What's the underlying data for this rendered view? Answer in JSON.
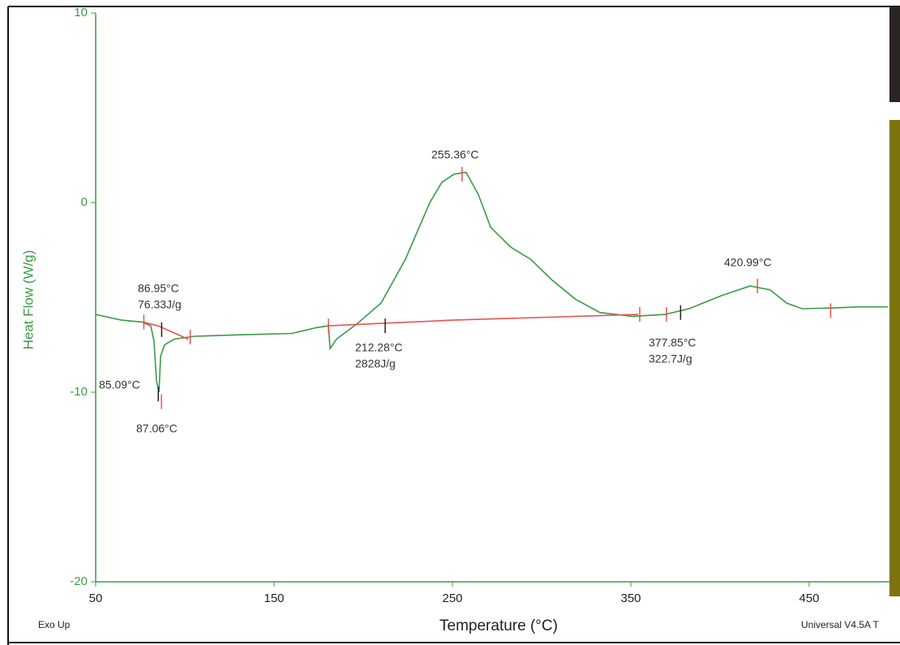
{
  "chart_data": {
    "type": "line",
    "x_label": "Temperature (°C)",
    "y_label": "Heat Flow (W/g)",
    "footer_left": "Exo Up",
    "footer_right": "Universal V4.5A T",
    "xlim": [
      50,
      495
    ],
    "xticks": [
      50,
      150,
      250,
      350,
      450
    ],
    "ylim": [
      -20,
      10
    ],
    "yticks": [
      10,
      0,
      -10,
      -20
    ],
    "series": [
      {
        "color": "#3a9a45",
        "x": [
          50,
          64.5,
          75.9,
          80.9,
          82.7,
          84.1,
          85.5,
          86.4,
          88.6,
          94.1,
          105.5,
          132.7,
          160,
          173.6,
          180.5,
          181.4,
          185,
          196.4,
          210,
          223.6,
          237.3,
          244.1,
          250.9,
          257.7,
          264.5,
          271.4,
          282.7,
          294,
          305.5,
          319,
          332.7,
          350.9,
          369,
          382.7,
          400.9,
          416.8,
          428,
          437.3,
          446,
          464.5,
          478,
          494
        ],
        "values": [
          -5.9,
          -6.2,
          -6.3,
          -6.5,
          -7.3,
          -9.4,
          -10.0,
          -8.1,
          -7.5,
          -7.2,
          -7.05,
          -6.97,
          -6.9,
          -6.6,
          -6.5,
          -7.7,
          -7.2,
          -6.4,
          -5.3,
          -3.0,
          0,
          1.07,
          1.5,
          1.6,
          0.43,
          -1.3,
          -2.35,
          -3.0,
          -4.06,
          -5.1,
          -5.8,
          -6.0,
          -5.9,
          -5.6,
          -4.9,
          -4.4,
          -4.6,
          -5.3,
          -5.6,
          -5.55,
          -5.5,
          -5.5
        ]
      },
      {
        "color": "#e8534f",
        "x": [
          76.4,
          85,
          101.8
        ],
        "values": [
          -6.3,
          -6.5,
          -7.2
        ]
      },
      {
        "color": "#e8534f",
        "x": [
          180.5,
          250,
          354
        ],
        "values": [
          -6.5,
          -6.2,
          -5.9
        ]
      }
    ],
    "markers": [
      {
        "color": "#e8534f",
        "x": [
          77,
          103,
          86.9,
          180.5,
          255.4,
          355,
          370,
          421,
          462
        ],
        "values": [
          -6.3,
          -7.1,
          -10.5,
          -6.5,
          1.5,
          -5.9,
          -5.9,
          -4.4,
          -5.7
        ]
      },
      {
        "color": "#222222",
        "x": [
          87,
          85.1,
          212.3,
          377.9
        ],
        "values": [
          -6.7,
          -10.1,
          -6.5,
          -5.8
        ]
      }
    ],
    "annotations": [
      "86.95°C",
      "76.33J/g",
      "85.09°C",
      "87.06°C",
      "212.28°C",
      "2828J/g",
      "255.36°C",
      "377.85°C",
      "322.7J/g",
      "420.99°C"
    ]
  }
}
